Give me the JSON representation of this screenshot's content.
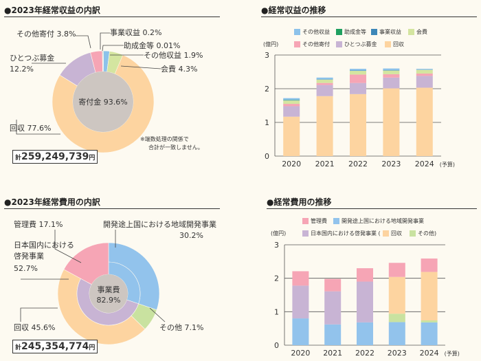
{
  "colors": {
    "collection": "#fdd4a0",
    "center": "#cdc6c1",
    "hitotsubu": "#c8b4d4",
    "other_donations": "#f6a5b5",
    "business_income": "#3d87b8",
    "grants": "#1fa060",
    "other_income": "#8cc2ea",
    "membership": "#d4e5a0",
    "admin": "#f6a5b5",
    "regional": "#92c3ec",
    "domestic": "#c8b4d4",
    "other_expense": "#c9e2a0",
    "grid": "#555555",
    "text": "#333333"
  },
  "income_breakdown": {
    "title": "●2023年経常収益の内訳",
    "note_line1": "※端数処理の関係で",
    "note_line2": "合計が一致しません。",
    "total_prefix": "計",
    "total_value": "259,249,739",
    "total_unit": "円"
  },
  "income_trend": {
    "title": "●経常収益の推移",
    "unit": "(億円)",
    "legend": [
      "その他収益",
      "助成金等",
      "事業収益",
      "会費",
      "その他寄付",
      "ひとつぶ募金",
      "回収"
    ]
  },
  "expense_breakdown": {
    "title": "●2023年経常費用の内訳",
    "total_prefix": "計",
    "total_value": "245,354,774",
    "total_unit": "円"
  },
  "expense_trend": {
    "title": "●経常費用の推移",
    "unit": "(億円)",
    "legend": [
      "管理費",
      "開発途上国における地域開発事業",
      "日本国内における啓発事業 (",
      "回収",
      "その他)"
    ]
  },
  "chart_data": [
    {
      "type": "pie",
      "title": "2023年経常収益の内訳",
      "outer_ring": [
        {
          "label": "回収",
          "value": 77.6,
          "display": "回収 77.6%"
        },
        {
          "label": "ひとつぶ募金",
          "value": 12.2,
          "display": [
            "ひとつぶ募金",
            "12.2%"
          ]
        },
        {
          "label": "その他寄付",
          "value": 3.8,
          "display": "その他寄付 3.8%"
        },
        {
          "label": "事業収益",
          "value": 0.2,
          "display": "事業収益 0.2%"
        },
        {
          "label": "助成金等",
          "value": 0.01,
          "display": "助成金等 0.01%"
        },
        {
          "label": "その他収益",
          "value": 1.9,
          "display": "その他収益 1.9%"
        },
        {
          "label": "会費",
          "value": 4.3,
          "display": "会費 4.3%"
        }
      ],
      "inner_ring": [
        {
          "label": "寄付金",
          "value": 93.6,
          "display": "寄付金 93.6%"
        }
      ],
      "total": "259,249,739円"
    },
    {
      "type": "bar",
      "stacked": true,
      "title": "経常収益の推移",
      "categories": [
        "2020",
        "2021",
        "2022",
        "2023",
        "2024"
      ],
      "category_note": "(予算)",
      "ylabel": "(億円)",
      "ylim": [
        0,
        3
      ],
      "yticks": [
        0,
        1,
        2,
        3
      ],
      "series": [
        {
          "name": "回収",
          "values": [
            1.17,
            1.78,
            1.84,
            2.01,
            2.03
          ]
        },
        {
          "name": "ひとつぶ募金",
          "values": [
            0.31,
            0.33,
            0.33,
            0.32,
            0.35
          ]
        },
        {
          "name": "その他寄付",
          "values": [
            0.07,
            0.06,
            0.25,
            0.1,
            0.07
          ]
        },
        {
          "name": "会費",
          "values": [
            0.1,
            0.1,
            0.11,
            0.11,
            0.11
          ]
        },
        {
          "name": "事業収益",
          "values": [
            0.01,
            0.01,
            0.01,
            0.01,
            0.0
          ]
        },
        {
          "name": "助成金等",
          "values": [
            0.01,
            0.0,
            0.0,
            0.0,
            0.0
          ]
        },
        {
          "name": "その他収益",
          "values": [
            0.05,
            0.05,
            0.05,
            0.05,
            0.03
          ]
        }
      ]
    },
    {
      "type": "pie",
      "title": "2023年経常費用の内訳",
      "outer_ring": [
        {
          "label": "管理費",
          "value": 17.1,
          "display": "管理費 17.1%"
        },
        {
          "label": "開発途上国における地域開発事業",
          "value": 30.2,
          "display": [
            "開発途上国における地域開発事業",
            "30.2%"
          ]
        },
        {
          "label": "その他",
          "value": 7.1,
          "display": "その他 7.1%"
        },
        {
          "label": "回収",
          "value": 45.6,
          "display": "回収 45.6%"
        }
      ],
      "inner_ring": [
        {
          "label": "事業費",
          "value": 82.9,
          "display": "事業費 82.9%"
        }
      ],
      "extra_labels": [
        {
          "label": "日本国内における啓発事業",
          "value": 52.7,
          "display": [
            "日本国内における",
            "啓発事業",
            "52.7%"
          ]
        }
      ],
      "total": "245,354,774円"
    },
    {
      "type": "bar",
      "stacked": true,
      "title": "経常費用の推移",
      "categories": [
        "2020",
        "2021",
        "2022",
        "2023",
        "2024"
      ],
      "category_note": "(予算)",
      "ylabel": "(億円)",
      "ylim": [
        0,
        3
      ],
      "yticks": [
        0,
        1,
        2,
        3
      ],
      "series": [
        {
          "name": "開発途上国における地域開発事業",
          "values": [
            0.8,
            0.62,
            0.68,
            0.69,
            0.68
          ]
        },
        {
          "name": "その他",
          "values": [
            0.0,
            0.0,
            0.0,
            0.25,
            0.06
          ]
        },
        {
          "name": "回収",
          "values": [
            0.0,
            0.0,
            0.0,
            1.1,
            1.45
          ]
        },
        {
          "name": "日本国内における啓発事業",
          "values": [
            0.98,
            0.99,
            1.22,
            0.0,
            0.0
          ]
        },
        {
          "name": "管理費",
          "values": [
            0.43,
            0.37,
            0.4,
            0.42,
            0.4
          ]
        }
      ]
    }
  ]
}
